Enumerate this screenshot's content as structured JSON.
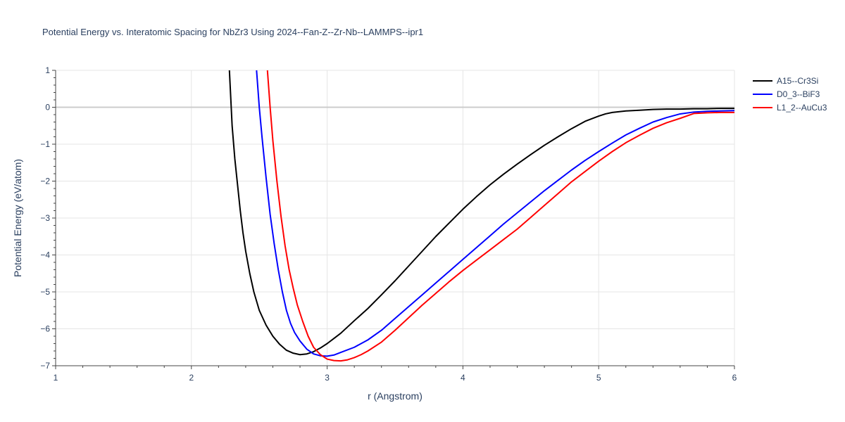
{
  "chart_data": {
    "type": "line",
    "title": "Potential Energy vs. Interatomic Spacing for NbZr3 Using 2024--Fan-Z--Zr-Nb--LAMMPS--ipr1",
    "xlabel": "r (Angstrom)",
    "ylabel": "Potential Energy (eV/atom)",
    "xlim": [
      1,
      6
    ],
    "ylim": [
      -7,
      1
    ],
    "xticks": [
      1,
      2,
      3,
      4,
      5,
      6
    ],
    "yticks": [
      1,
      0,
      -1,
      -2,
      -3,
      -4,
      -5,
      -6,
      -7
    ],
    "xtick_labels": [
      "1",
      "2",
      "3",
      "4",
      "5",
      "6"
    ],
    "ytick_labels": [
      "1",
      "0",
      "−1",
      "−2",
      "−3",
      "−4",
      "−5",
      "−6",
      "−7"
    ],
    "grid": true,
    "legend_position": "top-right",
    "series": [
      {
        "name": "A15--Cr3Si",
        "color": "#000000",
        "x": [
          2.28,
          2.3,
          2.32,
          2.34,
          2.36,
          2.38,
          2.4,
          2.43,
          2.46,
          2.5,
          2.55,
          2.6,
          2.65,
          2.7,
          2.75,
          2.8,
          2.85,
          2.9,
          2.95,
          3.0,
          3.05,
          3.1,
          3.2,
          3.3,
          3.4,
          3.5,
          3.6,
          3.7,
          3.8,
          3.9,
          4.0,
          4.1,
          4.2,
          4.3,
          4.4,
          4.5,
          4.6,
          4.7,
          4.8,
          4.9,
          5.0,
          5.05,
          5.1,
          5.2,
          5.3,
          5.4,
          5.5,
          5.6,
          5.7,
          5.8,
          5.9,
          6.0
        ],
        "y": [
          1.0,
          -0.5,
          -1.4,
          -2.1,
          -2.8,
          -3.4,
          -3.9,
          -4.5,
          -5.0,
          -5.5,
          -5.9,
          -6.2,
          -6.42,
          -6.58,
          -6.66,
          -6.7,
          -6.68,
          -6.62,
          -6.52,
          -6.4,
          -6.26,
          -6.12,
          -5.78,
          -5.45,
          -5.08,
          -4.7,
          -4.3,
          -3.9,
          -3.5,
          -3.13,
          -2.76,
          -2.42,
          -2.1,
          -1.81,
          -1.54,
          -1.28,
          -1.03,
          -0.8,
          -0.58,
          -0.38,
          -0.24,
          -0.18,
          -0.14,
          -0.1,
          -0.08,
          -0.06,
          -0.05,
          -0.05,
          -0.04,
          -0.04,
          -0.03,
          -0.03
        ]
      },
      {
        "name": "D0_3--BiF3",
        "color": "#0000ff",
        "x": [
          2.48,
          2.5,
          2.52,
          2.55,
          2.58,
          2.61,
          2.64,
          2.67,
          2.7,
          2.73,
          2.76,
          2.8,
          2.85,
          2.9,
          2.95,
          3.0,
          3.05,
          3.1,
          3.2,
          3.3,
          3.4,
          3.5,
          3.6,
          3.7,
          3.8,
          3.9,
          4.0,
          4.1,
          4.2,
          4.3,
          4.4,
          4.5,
          4.6,
          4.7,
          4.8,
          4.9,
          5.0,
          5.1,
          5.2,
          5.3,
          5.4,
          5.5,
          5.6,
          5.7,
          5.8,
          5.9,
          6.0
        ],
        "y": [
          1.0,
          0.0,
          -0.8,
          -1.9,
          -2.9,
          -3.7,
          -4.4,
          -5.0,
          -5.5,
          -5.85,
          -6.1,
          -6.33,
          -6.55,
          -6.68,
          -6.73,
          -6.74,
          -6.71,
          -6.64,
          -6.5,
          -6.3,
          -6.04,
          -5.72,
          -5.4,
          -5.08,
          -4.76,
          -4.44,
          -4.12,
          -3.8,
          -3.48,
          -3.16,
          -2.86,
          -2.56,
          -2.26,
          -1.98,
          -1.7,
          -1.44,
          -1.2,
          -0.97,
          -0.75,
          -0.57,
          -0.4,
          -0.28,
          -0.18,
          -0.13,
          -0.11,
          -0.1,
          -0.09
        ]
      },
      {
        "name": "L1_2--AuCu3",
        "color": "#ff0000",
        "x": [
          2.56,
          2.58,
          2.6,
          2.63,
          2.66,
          2.69,
          2.72,
          2.75,
          2.78,
          2.82,
          2.86,
          2.9,
          2.95,
          3.0,
          3.05,
          3.1,
          3.15,
          3.2,
          3.25,
          3.3,
          3.4,
          3.5,
          3.6,
          3.7,
          3.8,
          3.9,
          4.0,
          4.1,
          4.2,
          4.3,
          4.4,
          4.5,
          4.6,
          4.7,
          4.8,
          4.9,
          5.0,
          5.1,
          5.2,
          5.3,
          5.4,
          5.5,
          5.6,
          5.7,
          5.8,
          5.9,
          6.0
        ],
        "y": [
          1.0,
          0.0,
          -0.9,
          -2.0,
          -2.95,
          -3.75,
          -4.4,
          -4.9,
          -5.35,
          -5.8,
          -6.2,
          -6.5,
          -6.7,
          -6.82,
          -6.86,
          -6.87,
          -6.84,
          -6.78,
          -6.7,
          -6.6,
          -6.36,
          -6.04,
          -5.7,
          -5.36,
          -5.04,
          -4.72,
          -4.42,
          -4.14,
          -3.86,
          -3.58,
          -3.3,
          -2.98,
          -2.66,
          -2.34,
          -2.02,
          -1.74,
          -1.46,
          -1.2,
          -0.96,
          -0.76,
          -0.57,
          -0.42,
          -0.3,
          -0.17,
          -0.15,
          -0.14,
          -0.14
        ]
      }
    ]
  }
}
